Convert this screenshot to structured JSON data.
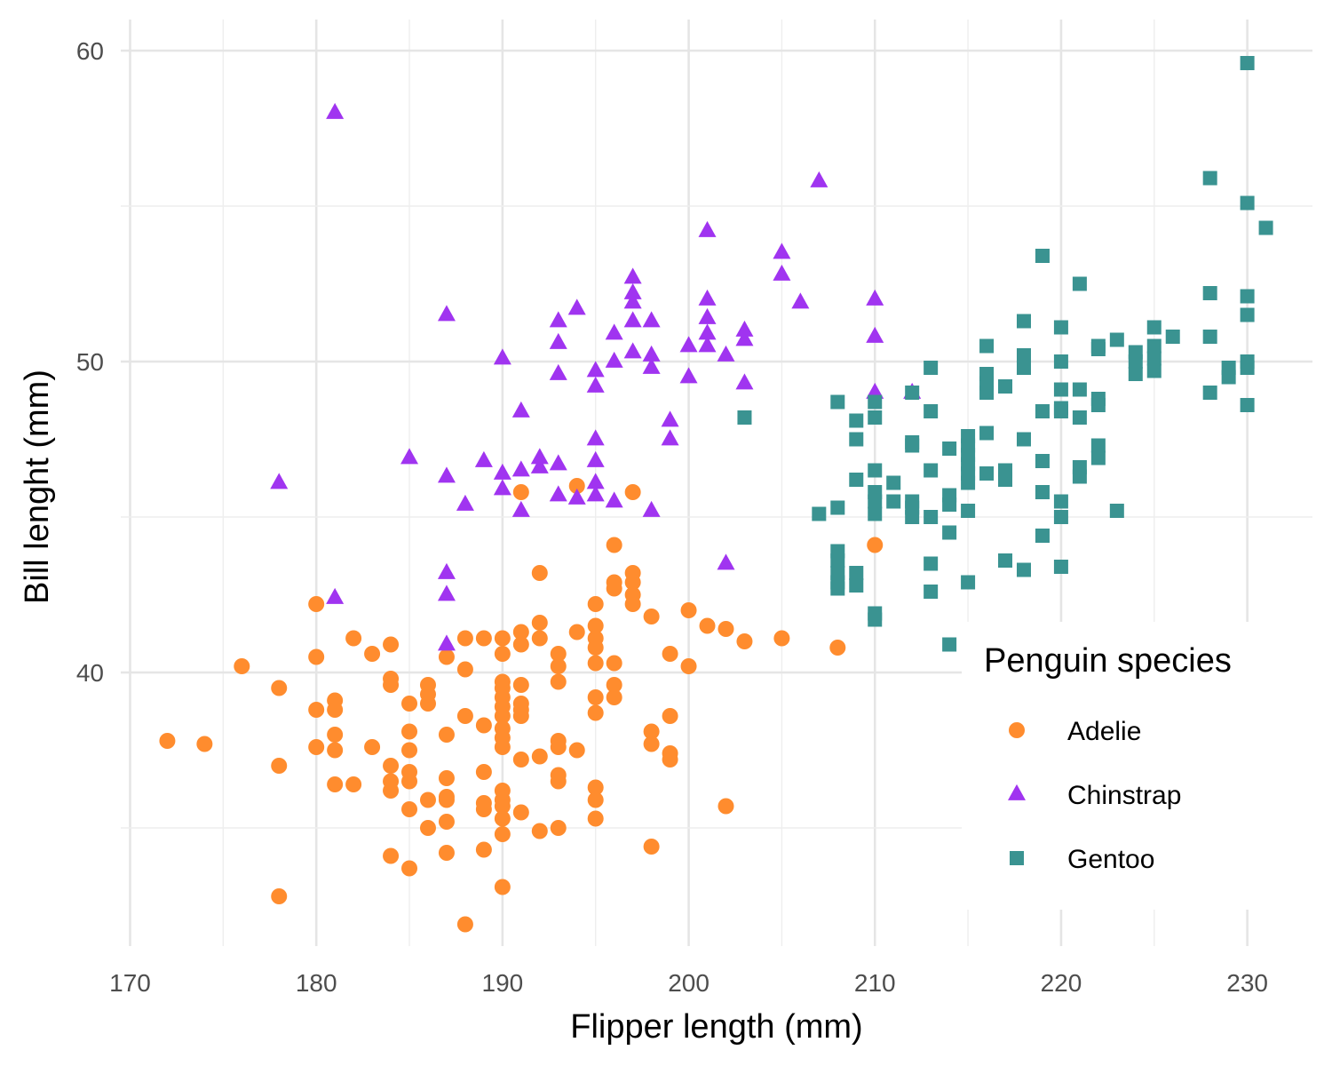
{
  "chart_data": {
    "type": "scatter",
    "xlabel": "Flipper length (mm)",
    "ylabel": "Bill lenght (mm)",
    "xlim": [
      169.5,
      233.5
    ],
    "ylim": [
      31.2,
      61.0
    ],
    "x_ticks": [
      170,
      180,
      190,
      200,
      210,
      220,
      230
    ],
    "y_ticks": [
      40,
      50,
      60
    ],
    "x_tick_labels": [
      "170",
      "180",
      "190",
      "200",
      "210",
      "220",
      "230"
    ],
    "y_tick_labels": [
      "40",
      "50",
      "60"
    ],
    "grid": true,
    "legend": {
      "title": "Penguin species",
      "placement": "bottom-right inside"
    },
    "series": [
      {
        "name": "Adelie",
        "marker": "circle",
        "color": "#FF8C2E",
        "points": [
          [
            172,
            37.8
          ],
          [
            174,
            37.7
          ],
          [
            176,
            40.2
          ],
          [
            178,
            39.5
          ],
          [
            178,
            37.0
          ],
          [
            178,
            32.8
          ],
          [
            180,
            42.2
          ],
          [
            180,
            40.5
          ],
          [
            180,
            38.8
          ],
          [
            180,
            37.6
          ],
          [
            181,
            39.1
          ],
          [
            181,
            38.8
          ],
          [
            181,
            38.0
          ],
          [
            181,
            37.5
          ],
          [
            181,
            36.4
          ],
          [
            182,
            41.1
          ],
          [
            182,
            36.4
          ],
          [
            183,
            40.6
          ],
          [
            183,
            37.6
          ],
          [
            184,
            40.9
          ],
          [
            184,
            39.8
          ],
          [
            184,
            39.6
          ],
          [
            184,
            37.0
          ],
          [
            184,
            36.5
          ],
          [
            184,
            36.2
          ],
          [
            184,
            34.1
          ],
          [
            185,
            39.0
          ],
          [
            185,
            38.1
          ],
          [
            185,
            37.5
          ],
          [
            185,
            36.8
          ],
          [
            185,
            36.5
          ],
          [
            185,
            35.6
          ],
          [
            185,
            33.7
          ],
          [
            186,
            39.6
          ],
          [
            186,
            39.3
          ],
          [
            186,
            39.0
          ],
          [
            186,
            35.9
          ],
          [
            186,
            35.0
          ],
          [
            187,
            40.5
          ],
          [
            187,
            38.0
          ],
          [
            187,
            36.6
          ],
          [
            187,
            36.0
          ],
          [
            187,
            35.9
          ],
          [
            187,
            35.2
          ],
          [
            187,
            34.2
          ],
          [
            188,
            41.1
          ],
          [
            188,
            40.1
          ],
          [
            188,
            38.6
          ],
          [
            188,
            31.9
          ],
          [
            189,
            41.1
          ],
          [
            189,
            38.3
          ],
          [
            189,
            36.8
          ],
          [
            189,
            35.8
          ],
          [
            189,
            35.6
          ],
          [
            189,
            34.3
          ],
          [
            190,
            41.1
          ],
          [
            190,
            40.6
          ],
          [
            190,
            39.7
          ],
          [
            190,
            39.5
          ],
          [
            190,
            39.2
          ],
          [
            190,
            38.9
          ],
          [
            190,
            38.6
          ],
          [
            190,
            38.2
          ],
          [
            190,
            37.9
          ],
          [
            190,
            37.6
          ],
          [
            190,
            36.2
          ],
          [
            190,
            35.9
          ],
          [
            190,
            35.7
          ],
          [
            190,
            35.3
          ],
          [
            190,
            34.8
          ],
          [
            190,
            33.1
          ],
          [
            191,
            45.8
          ],
          [
            191,
            41.3
          ],
          [
            191,
            40.9
          ],
          [
            191,
            39.6
          ],
          [
            191,
            39.0
          ],
          [
            191,
            38.8
          ],
          [
            191,
            38.6
          ],
          [
            191,
            37.2
          ],
          [
            191,
            35.5
          ],
          [
            192,
            43.2
          ],
          [
            192,
            41.6
          ],
          [
            192,
            41.1
          ],
          [
            192,
            37.3
          ],
          [
            192,
            34.9
          ],
          [
            193,
            40.6
          ],
          [
            193,
            40.2
          ],
          [
            193,
            39.7
          ],
          [
            193,
            37.8
          ],
          [
            193,
            37.6
          ],
          [
            193,
            36.7
          ],
          [
            193,
            36.5
          ],
          [
            193,
            35.0
          ],
          [
            194,
            46.0
          ],
          [
            194,
            41.3
          ],
          [
            194,
            37.5
          ],
          [
            195,
            42.2
          ],
          [
            195,
            41.5
          ],
          [
            195,
            41.1
          ],
          [
            195,
            40.8
          ],
          [
            195,
            40.3
          ],
          [
            195,
            39.2
          ],
          [
            195,
            38.7
          ],
          [
            195,
            36.3
          ],
          [
            195,
            35.9
          ],
          [
            195,
            35.3
          ],
          [
            196,
            44.1
          ],
          [
            196,
            42.9
          ],
          [
            196,
            42.7
          ],
          [
            196,
            40.3
          ],
          [
            196,
            39.6
          ],
          [
            196,
            39.2
          ],
          [
            197,
            45.8
          ],
          [
            197,
            43.2
          ],
          [
            197,
            42.9
          ],
          [
            197,
            42.5
          ],
          [
            197,
            42.2
          ],
          [
            198,
            41.8
          ],
          [
            198,
            38.1
          ],
          [
            198,
            37.7
          ],
          [
            198,
            34.4
          ],
          [
            199,
            40.6
          ],
          [
            199,
            38.6
          ],
          [
            199,
            37.4
          ],
          [
            199,
            37.2
          ],
          [
            200,
            42.0
          ],
          [
            200,
            40.2
          ],
          [
            201,
            41.5
          ],
          [
            202,
            41.4
          ],
          [
            202,
            35.7
          ],
          [
            203,
            41.0
          ],
          [
            205,
            41.1
          ],
          [
            208,
            40.8
          ],
          [
            210,
            44.1
          ]
        ]
      },
      {
        "name": "Chinstrap",
        "marker": "triangle",
        "color": "#A034F0",
        "points": [
          [
            178,
            46.1
          ],
          [
            181,
            58.0
          ],
          [
            181,
            42.4
          ],
          [
            185,
            46.9
          ],
          [
            187,
            51.5
          ],
          [
            187,
            46.3
          ],
          [
            187,
            43.2
          ],
          [
            187,
            42.5
          ],
          [
            187,
            40.9
          ],
          [
            188,
            45.4
          ],
          [
            189,
            46.8
          ],
          [
            190,
            50.1
          ],
          [
            190,
            46.4
          ],
          [
            190,
            45.9
          ],
          [
            191,
            48.4
          ],
          [
            191,
            46.5
          ],
          [
            191,
            45.2
          ],
          [
            192,
            46.9
          ],
          [
            192,
            46.6
          ],
          [
            193,
            51.3
          ],
          [
            193,
            50.6
          ],
          [
            193,
            49.6
          ],
          [
            193,
            46.7
          ],
          [
            193,
            45.7
          ],
          [
            194,
            51.7
          ],
          [
            194,
            45.6
          ],
          [
            195,
            49.7
          ],
          [
            195,
            49.2
          ],
          [
            195,
            47.5
          ],
          [
            195,
            46.8
          ],
          [
            195,
            46.1
          ],
          [
            195,
            45.7
          ],
          [
            196,
            50.9
          ],
          [
            196,
            50.0
          ],
          [
            196,
            45.5
          ],
          [
            197,
            52.7
          ],
          [
            197,
            52.2
          ],
          [
            197,
            51.9
          ],
          [
            197,
            51.3
          ],
          [
            197,
            50.3
          ],
          [
            198,
            51.3
          ],
          [
            198,
            50.2
          ],
          [
            198,
            49.8
          ],
          [
            198,
            45.2
          ],
          [
            199,
            48.1
          ],
          [
            199,
            47.5
          ],
          [
            200,
            50.5
          ],
          [
            200,
            49.5
          ],
          [
            201,
            54.2
          ],
          [
            201,
            52.0
          ],
          [
            201,
            51.4
          ],
          [
            201,
            50.9
          ],
          [
            201,
            50.5
          ],
          [
            202,
            50.2
          ],
          [
            202,
            43.5
          ],
          [
            203,
            51.0
          ],
          [
            203,
            50.7
          ],
          [
            203,
            49.3
          ],
          [
            205,
            53.5
          ],
          [
            205,
            52.8
          ],
          [
            206,
            51.9
          ],
          [
            207,
            55.8
          ],
          [
            210,
            52.0
          ],
          [
            210,
            50.8
          ],
          [
            210,
            49.0
          ],
          [
            212,
            49.0
          ]
        ]
      },
      {
        "name": "Gentoo",
        "marker": "square",
        "color": "#3A9391",
        "points": [
          [
            203,
            48.2
          ],
          [
            207,
            45.1
          ],
          [
            208,
            48.7
          ],
          [
            208,
            45.3
          ],
          [
            208,
            43.9
          ],
          [
            208,
            43.6
          ],
          [
            208,
            43.2
          ],
          [
            208,
            42.9
          ],
          [
            208,
            42.7
          ],
          [
            209,
            48.1
          ],
          [
            209,
            47.5
          ],
          [
            209,
            46.2
          ],
          [
            209,
            43.2
          ],
          [
            209,
            42.8
          ],
          [
            210,
            48.7
          ],
          [
            210,
            48.2
          ],
          [
            210,
            46.5
          ],
          [
            210,
            45.8
          ],
          [
            210,
            45.5
          ],
          [
            210,
            45.1
          ],
          [
            210,
            41.9
          ],
          [
            210,
            41.7
          ],
          [
            211,
            46.1
          ],
          [
            211,
            45.5
          ],
          [
            212,
            49.0
          ],
          [
            212,
            47.4
          ],
          [
            212,
            47.3
          ],
          [
            212,
            45.5
          ],
          [
            212,
            45.3
          ],
          [
            212,
            45.0
          ],
          [
            213,
            49.8
          ],
          [
            213,
            48.4
          ],
          [
            213,
            46.5
          ],
          [
            213,
            45.0
          ],
          [
            213,
            43.5
          ],
          [
            213,
            42.6
          ],
          [
            214,
            47.2
          ],
          [
            214,
            45.7
          ],
          [
            214,
            45.4
          ],
          [
            214,
            44.5
          ],
          [
            214,
            40.9
          ],
          [
            215,
            47.6
          ],
          [
            215,
            47.3
          ],
          [
            215,
            47.0
          ],
          [
            215,
            46.7
          ],
          [
            215,
            46.4
          ],
          [
            215,
            46.1
          ],
          [
            215,
            45.2
          ],
          [
            215,
            42.9
          ],
          [
            216,
            50.5
          ],
          [
            216,
            49.6
          ],
          [
            216,
            49.3
          ],
          [
            216,
            49.0
          ],
          [
            216,
            47.7
          ],
          [
            216,
            46.4
          ],
          [
            217,
            49.2
          ],
          [
            217,
            46.5
          ],
          [
            217,
            46.2
          ],
          [
            217,
            43.6
          ],
          [
            218,
            51.3
          ],
          [
            218,
            50.2
          ],
          [
            218,
            49.8
          ],
          [
            218,
            47.5
          ],
          [
            218,
            43.3
          ],
          [
            219,
            53.4
          ],
          [
            219,
            48.4
          ],
          [
            219,
            46.8
          ],
          [
            219,
            45.8
          ],
          [
            219,
            44.4
          ],
          [
            220,
            51.1
          ],
          [
            220,
            50.0
          ],
          [
            220,
            49.1
          ],
          [
            220,
            48.5
          ],
          [
            220,
            48.4
          ],
          [
            220,
            45.5
          ],
          [
            220,
            45.0
          ],
          [
            220,
            43.4
          ],
          [
            221,
            52.5
          ],
          [
            221,
            49.1
          ],
          [
            221,
            48.2
          ],
          [
            221,
            46.6
          ],
          [
            221,
            46.3
          ],
          [
            222,
            50.5
          ],
          [
            222,
            50.4
          ],
          [
            222,
            48.8
          ],
          [
            222,
            48.6
          ],
          [
            222,
            47.3
          ],
          [
            222,
            46.9
          ],
          [
            223,
            50.7
          ],
          [
            223,
            45.2
          ],
          [
            224,
            50.3
          ],
          [
            224,
            50.0
          ],
          [
            224,
            49.6
          ],
          [
            225,
            51.1
          ],
          [
            225,
            50.5
          ],
          [
            225,
            50.1
          ],
          [
            225,
            49.7
          ],
          [
            226,
            50.8
          ],
          [
            228,
            55.9
          ],
          [
            228,
            52.2
          ],
          [
            228,
            50.8
          ],
          [
            228,
            49.0
          ],
          [
            229,
            49.8
          ],
          [
            229,
            49.5
          ],
          [
            230,
            59.6
          ],
          [
            230,
            55.1
          ],
          [
            230,
            52.1
          ],
          [
            230,
            51.5
          ],
          [
            230,
            50.0
          ],
          [
            230,
            49.8
          ],
          [
            230,
            48.6
          ],
          [
            231,
            54.3
          ]
        ]
      }
    ]
  }
}
